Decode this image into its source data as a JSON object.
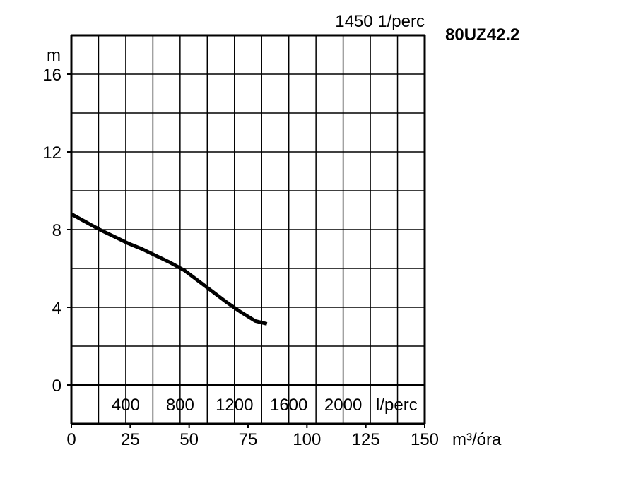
{
  "chart_data": {
    "type": "line",
    "title": "80UZ42.2",
    "speed_label": "1450 1/perc",
    "ylabel": "m",
    "ylim": [
      -2,
      18
    ],
    "y_ticks": [
      0,
      4,
      8,
      12,
      16
    ],
    "x_primary": {
      "label": "m³/óra",
      "lim": [
        0,
        150
      ],
      "ticks": [
        0,
        25,
        50,
        75,
        100,
        125,
        150
      ]
    },
    "x_secondary": {
      "label": "l/perc",
      "ticks": [
        400,
        800,
        1200,
        1600,
        2000
      ]
    },
    "grid": true,
    "series": [
      {
        "x": [
          0,
          6,
          12,
          18,
          24,
          30,
          36,
          42,
          48,
          54,
          60,
          66,
          72,
          78,
          83
        ],
        "y": [
          8.8,
          8.4,
          8.0,
          7.65,
          7.3,
          7.0,
          6.65,
          6.3,
          5.9,
          5.35,
          4.8,
          4.25,
          3.75,
          3.3,
          3.15
        ]
      }
    ]
  }
}
